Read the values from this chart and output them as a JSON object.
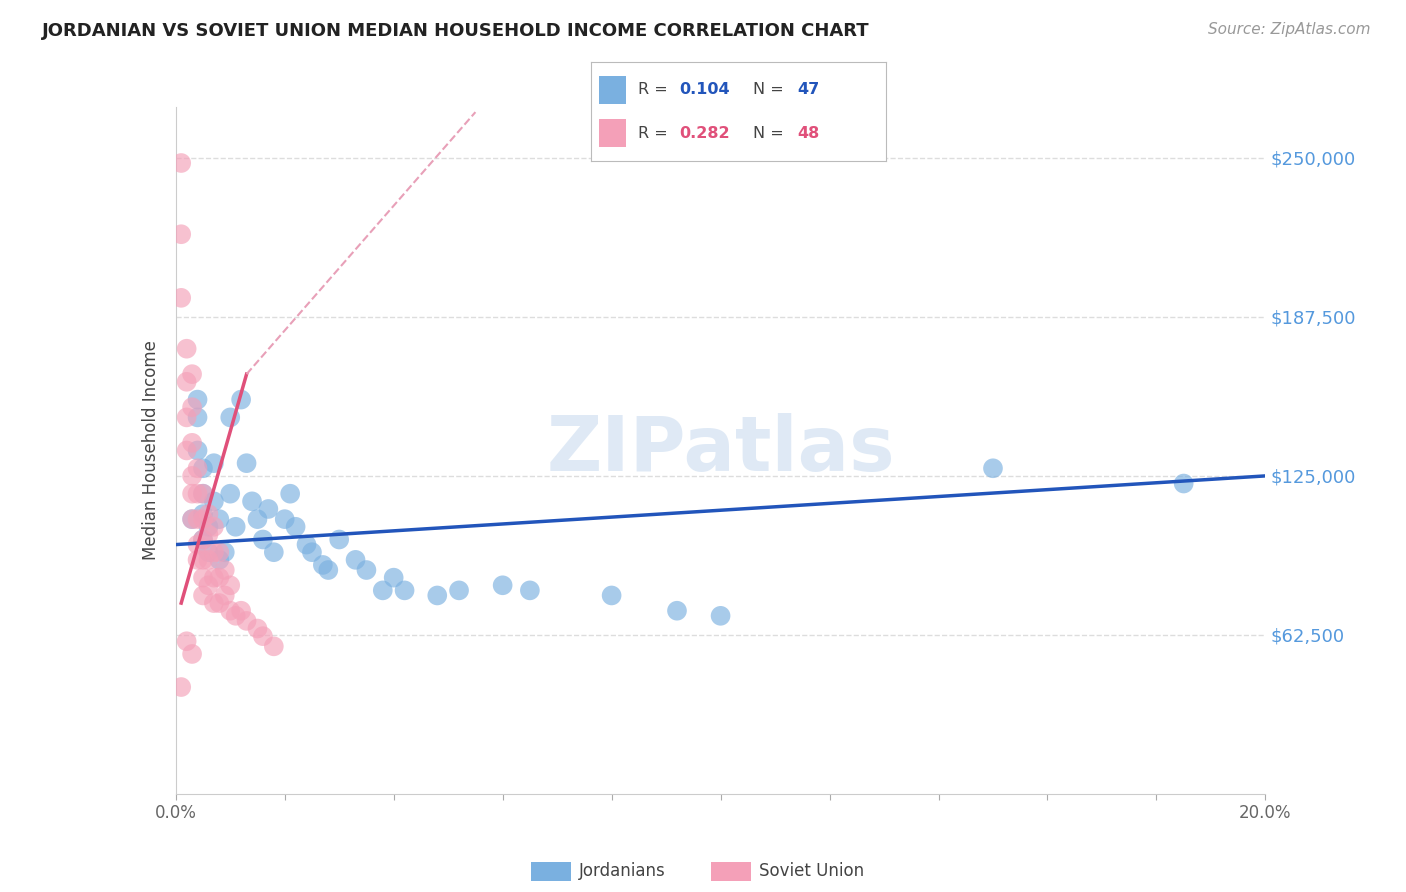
{
  "title": "JORDANIAN VS SOVIET UNION MEDIAN HOUSEHOLD INCOME CORRELATION CHART",
  "source": "Source: ZipAtlas.com",
  "ylabel": "Median Household Income",
  "x_min": 0.0,
  "x_max": 0.2,
  "y_min": 0,
  "y_max": 270000,
  "y_ticks": [
    62500,
    125000,
    187500,
    250000
  ],
  "y_tick_labels": [
    "$62,500",
    "$125,000",
    "$187,500",
    "$250,000"
  ],
  "x_ticks": [
    0.0,
    0.02,
    0.04,
    0.06,
    0.08,
    0.1,
    0.12,
    0.14,
    0.16,
    0.18,
    0.2
  ],
  "x_tick_labels": [
    "0.0%",
    "",
    "",
    "",
    "",
    "",
    "",
    "",
    "",
    "",
    "20.0%"
  ],
  "background_color": "#ffffff",
  "grid_color": "#dddddd",
  "watermark": "ZIPatlas",
  "jordanians_color": "#7ab0e0",
  "soviet_color": "#f4a0b8",
  "trend_blue_color": "#2255bb",
  "trend_pink_color": "#e0507a",
  "trend_pink_dashed_color": "#e8a0b8",
  "jordanians_x": [
    0.003,
    0.004,
    0.004,
    0.004,
    0.005,
    0.005,
    0.005,
    0.005,
    0.006,
    0.006,
    0.007,
    0.007,
    0.008,
    0.008,
    0.009,
    0.01,
    0.01,
    0.011,
    0.012,
    0.013,
    0.014,
    0.015,
    0.016,
    0.017,
    0.018,
    0.02,
    0.021,
    0.022,
    0.024,
    0.025,
    0.027,
    0.028,
    0.03,
    0.033,
    0.035,
    0.038,
    0.04,
    0.042,
    0.048,
    0.052,
    0.06,
    0.065,
    0.08,
    0.092,
    0.1,
    0.15,
    0.185
  ],
  "jordanians_y": [
    108000,
    155000,
    148000,
    135000,
    128000,
    118000,
    110000,
    100000,
    105000,
    95000,
    130000,
    115000,
    108000,
    92000,
    95000,
    148000,
    118000,
    105000,
    155000,
    130000,
    115000,
    108000,
    100000,
    112000,
    95000,
    108000,
    118000,
    105000,
    98000,
    95000,
    90000,
    88000,
    100000,
    92000,
    88000,
    80000,
    85000,
    80000,
    78000,
    80000,
    82000,
    80000,
    78000,
    72000,
    70000,
    128000,
    122000
  ],
  "soviet_x": [
    0.001,
    0.001,
    0.001,
    0.002,
    0.002,
    0.002,
    0.002,
    0.003,
    0.003,
    0.003,
    0.003,
    0.003,
    0.003,
    0.004,
    0.004,
    0.004,
    0.004,
    0.004,
    0.005,
    0.005,
    0.005,
    0.005,
    0.005,
    0.005,
    0.006,
    0.006,
    0.006,
    0.006,
    0.007,
    0.007,
    0.007,
    0.007,
    0.008,
    0.008,
    0.008,
    0.009,
    0.009,
    0.01,
    0.01,
    0.011,
    0.012,
    0.013,
    0.015,
    0.016,
    0.018,
    0.002,
    0.003,
    0.001
  ],
  "soviet_y": [
    248000,
    220000,
    195000,
    175000,
    162000,
    148000,
    135000,
    165000,
    152000,
    138000,
    125000,
    118000,
    108000,
    128000,
    118000,
    108000,
    98000,
    92000,
    118000,
    108000,
    100000,
    92000,
    85000,
    78000,
    110000,
    102000,
    92000,
    82000,
    105000,
    95000,
    85000,
    75000,
    95000,
    85000,
    75000,
    88000,
    78000,
    82000,
    72000,
    70000,
    72000,
    68000,
    65000,
    62000,
    58000,
    60000,
    55000,
    42000
  ],
  "blue_trend_x0": 0.0,
  "blue_trend_y0": 98000,
  "blue_trend_x1": 0.2,
  "blue_trend_y1": 125000,
  "pink_trend_solid_x0": 0.001,
  "pink_trend_solid_y0": 75000,
  "pink_trend_solid_x1": 0.013,
  "pink_trend_solid_y1": 165000,
  "pink_trend_dash_x0": 0.013,
  "pink_trend_dash_y0": 165000,
  "pink_trend_dash_x1": 0.055,
  "pink_trend_dash_y1": 268000
}
